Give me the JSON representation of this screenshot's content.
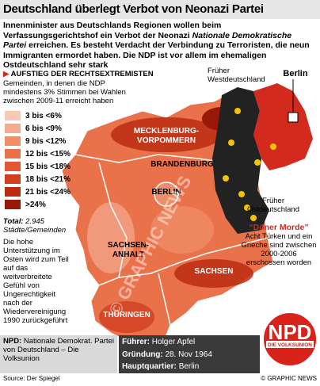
{
  "header": {
    "title": "Deutschland überlegt Verbot von Neonazi Partei"
  },
  "intro": {
    "before": "Innenminister aus Deutschlands Regionen wollen beim Verfassungsgerichtshof ein Verbot der Neonazi ",
    "emphasis": "Nationale Demokratische Partei",
    "after": " erreichen. Es besteht Verdacht der Verbindung zu Terroristen, die neun Immigranten ermordet haben. Die NDP ist vor allem im ehemaligen Ostdeutschland sehr stark"
  },
  "section": {
    "heading": "AUFSTIEG DER RECHTSEXTREMISTEN",
    "description": "Gemeinden, in denen die NDP mindestens 3% Stimmen bei Wahlen zwischen 2009-11 erreicht haben",
    "legend": [
      {
        "label": "3 bis <6%",
        "color": "#f7c9b6"
      },
      {
        "label": "6 bis <9%",
        "color": "#f3ab90"
      },
      {
        "label": "9 bis <12%",
        "color": "#ef8e6a"
      },
      {
        "label": "12 bis <15%",
        "color": "#e9724b"
      },
      {
        "label": "15 bis <18%",
        "color": "#e05731"
      },
      {
        "label": "18 bis <21%",
        "color": "#d13f1f"
      },
      {
        "label": "21 bis <24%",
        "color": "#bb2b12"
      },
      {
        "label": ">24%",
        "color": "#98180a"
      }
    ],
    "total_label": "Total:",
    "total_value": "2.945 Städte/Gemeinden",
    "note": "Die hohe Unterstützung im Osten wird zum Teil auf das weitverbreitete Gefühl von Ungerechtigkeit nach der Wiedervereinigung 1990 zurückgeführt"
  },
  "map": {
    "regions": [
      {
        "lines": [
          "MECKLENBURG-",
          "VORPOMMERN"
        ]
      },
      {
        "lines": [
          "BRANDENBURG"
        ]
      },
      {
        "lines": [
          "BERLIN"
        ]
      },
      {
        "lines": [
          "SACHSEN-",
          "ANHALT"
        ]
      },
      {
        "lines": [
          "SACHSEN"
        ]
      },
      {
        "lines": [
          "THÜRINGEN"
        ]
      }
    ]
  },
  "inset": {
    "west": "Früher Westdeutschland",
    "capital": "Berlin",
    "east": "Früher Ostdeutschland"
  },
  "doner": {
    "title": "“Döner Morde”",
    "text": "Acht Türken und ein Grieche sind zwischen 2000-2006 erschossen worden"
  },
  "facts": {
    "party_label": "NPD:",
    "party_value": "Nationale Demokrat. Partei von Deutschland – Die Volksunion",
    "leader_label": "Führer:",
    "leader_value": "Holger Apfel",
    "founded_label": "Gründung:",
    "founded_value": "28. Nov 1964",
    "hq_label": "Hauptquartier:",
    "hq_value": "Berlin"
  },
  "logo": {
    "name": "NPD",
    "subtitle": "DIE VOLKSUNION"
  },
  "footer": {
    "source": "Source: Der Spiegel",
    "credit": "© GRAPHIC NEWS"
  }
}
